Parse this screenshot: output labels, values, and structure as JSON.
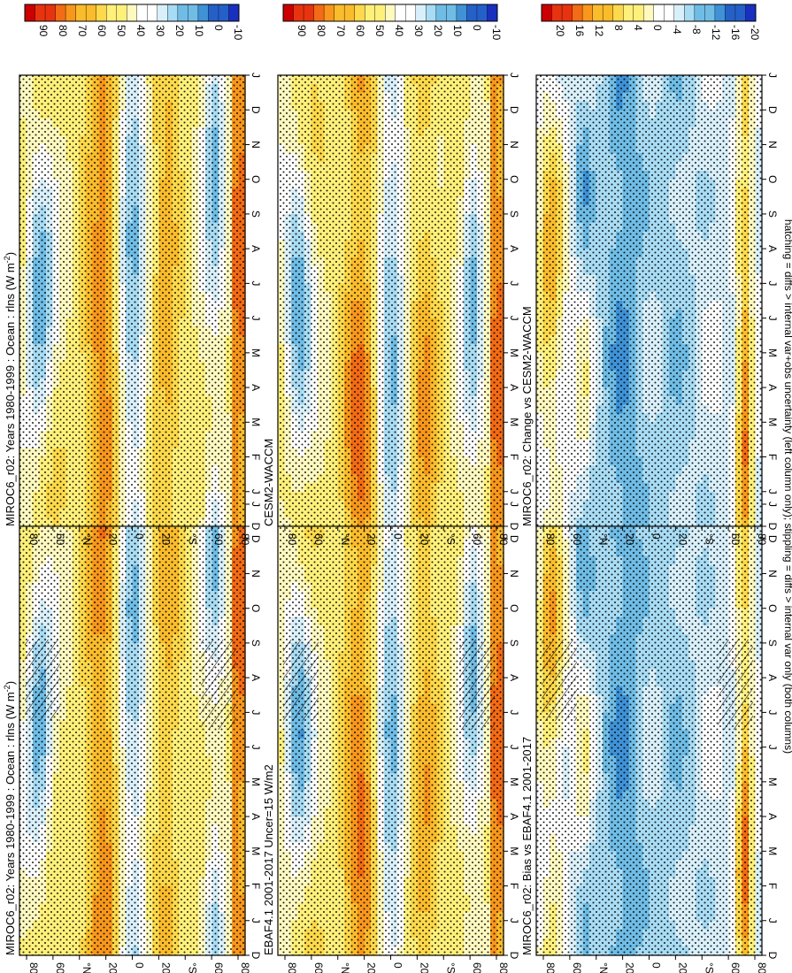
{
  "figure": {
    "footer": "hatching = diffs > internal var+obs uncertainty (left column only); stippling = diffs > internal var only (both columns)"
  },
  "chart_data": [
    {
      "type": "heatmap",
      "id": "p1",
      "title": "MIROC6_r02: Years 1980-1999 : Ocean : rlns (W m",
      "title_sup": "-2",
      "title_tail": ")",
      "months": [
        "D",
        "J",
        "F",
        "M",
        "A",
        "M",
        "J",
        "J",
        "A",
        "S",
        "O",
        "N",
        "D",
        "J"
      ],
      "lat_ticks": [
        "80",
        "60",
        "°N",
        "20",
        "0",
        "20",
        "°S",
        "60",
        "80"
      ],
      "colorbar_ticks": [
        "90",
        "80",
        "70",
        "60",
        "50",
        "40",
        "30",
        "20",
        "10",
        "0",
        "-10"
      ],
      "palette": "abs",
      "hatched": true
    },
    {
      "type": "heatmap",
      "id": "p2",
      "title": "MIROC6_r02: Years 1980-1999 : Ocean : rlns (W m",
      "title_sup": "-2",
      "title_tail": ")",
      "months": [
        "D",
        "J",
        "F",
        "M",
        "A",
        "M",
        "J",
        "J",
        "A",
        "S",
        "O",
        "N",
        "D",
        "J"
      ],
      "lat_ticks": [
        "80",
        "60",
        "°N",
        "20",
        "0",
        "20",
        "°S",
        "60",
        "80"
      ],
      "colorbar_ticks": [
        "90",
        "80",
        "70",
        "60",
        "50",
        "40",
        "30",
        "20",
        "10",
        "0",
        "-10"
      ],
      "palette": "abs",
      "hatched": false
    },
    {
      "type": "heatmap",
      "id": "p3",
      "title": "EBAF4.1 2001-2017 Uncer=15 W/m2",
      "title_sup": "",
      "title_tail": "",
      "months": [
        "D",
        "J",
        "F",
        "M",
        "A",
        "M",
        "J",
        "J",
        "A",
        "S",
        "O",
        "N",
        "D",
        "J"
      ],
      "lat_ticks": [
        "80",
        "60",
        "°N",
        "20",
        "0",
        "20",
        "°S",
        "60",
        "80"
      ],
      "colorbar_ticks": [
        "90",
        "80",
        "70",
        "60",
        "50",
        "40",
        "30",
        "20",
        "10",
        "0",
        "-10"
      ],
      "palette": "abs",
      "hatched": true
    },
    {
      "type": "heatmap",
      "id": "p4",
      "title": "CESM2-WACCM",
      "title_sup": "",
      "title_tail": "",
      "months": [
        "D",
        "J",
        "F",
        "M",
        "A",
        "M",
        "J",
        "J",
        "A",
        "S",
        "O",
        "N",
        "D",
        "J"
      ],
      "lat_ticks": [
        "80",
        "60",
        "°N",
        "20",
        "0",
        "20",
        "°S",
        "60",
        "80"
      ],
      "colorbar_ticks": [
        "90",
        "80",
        "70",
        "60",
        "50",
        "40",
        "30",
        "20",
        "10",
        "0",
        "-10"
      ],
      "palette": "abs",
      "hatched": false
    },
    {
      "type": "heatmap",
      "id": "p5",
      "title": "MIROC6_r02: Bias vs EBAF4.1 2001-2017",
      "title_sup": "",
      "title_tail": "",
      "months": [
        "D",
        "J",
        "F",
        "M",
        "A",
        "M",
        "J",
        "J",
        "A",
        "S",
        "O",
        "N",
        "D",
        "J"
      ],
      "lat_ticks": [
        "80",
        "60",
        "°N",
        "20",
        "0",
        "20",
        "°S",
        "60",
        "80"
      ],
      "colorbar_ticks": [
        "20",
        "16",
        "12",
        "8",
        "4",
        "0",
        "-4",
        "-8",
        "-12",
        "-16",
        "-20"
      ],
      "palette": "diff",
      "hatched": true
    },
    {
      "type": "heatmap",
      "id": "p6",
      "title": "MIROC6_r02: Change vs CESM2-WACCM",
      "title_sup": "",
      "title_tail": "",
      "months": [
        "D",
        "J",
        "F",
        "M",
        "A",
        "M",
        "J",
        "J",
        "A",
        "S",
        "O",
        "N",
        "D",
        "J"
      ],
      "lat_ticks": [
        "80",
        "60",
        "°N",
        "20",
        "0",
        "20",
        "°S",
        "60",
        "80"
      ],
      "colorbar_ticks": [
        "20",
        "16",
        "12",
        "8",
        "4",
        "0",
        "-4",
        "-8",
        "-12",
        "-16",
        "-20"
      ],
      "palette": "diff",
      "hatched": false
    }
  ]
}
